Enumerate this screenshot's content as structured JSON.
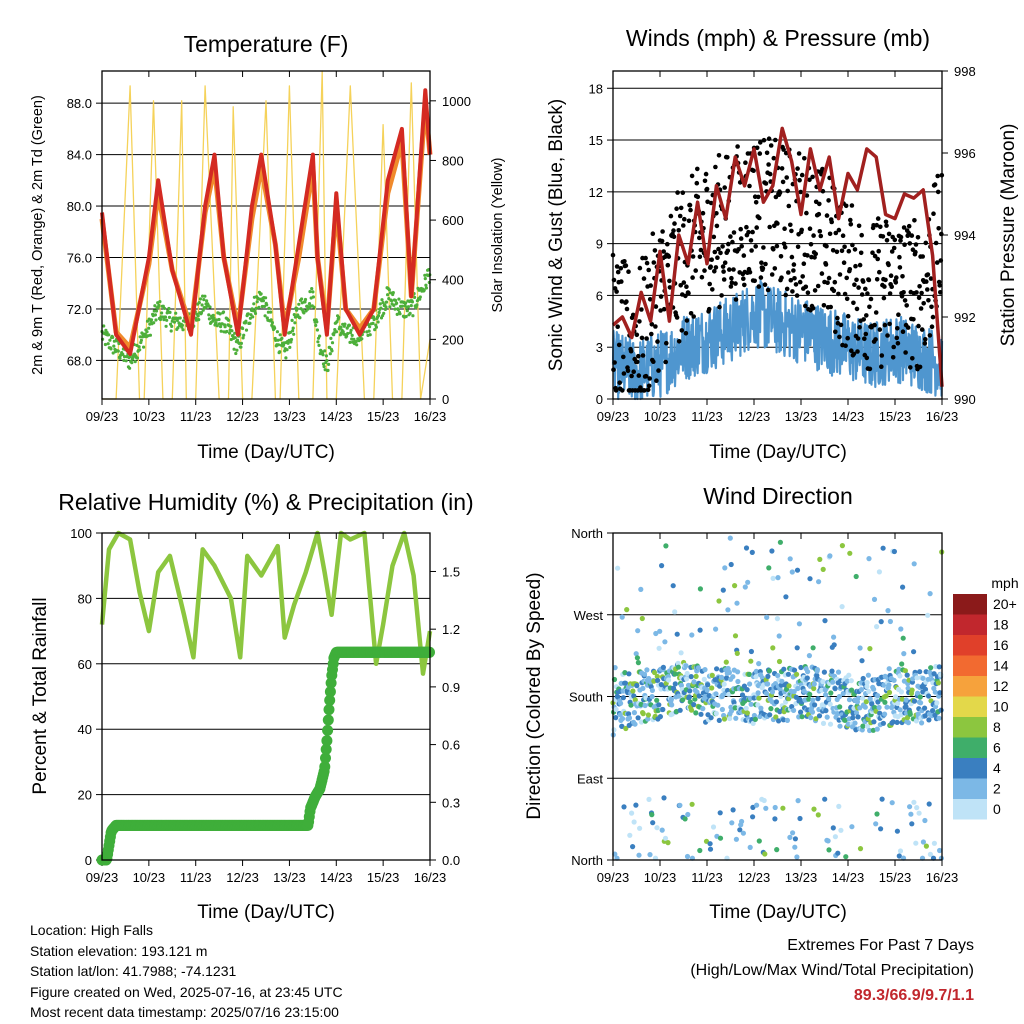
{
  "x_ticks": [
    "09/23",
    "10/23",
    "11/23",
    "12/23",
    "13/23",
    "14/23",
    "15/23",
    "16/23"
  ],
  "info": {
    "location": "Location: High Falls",
    "elevation": "Station elevation: 193.121 m",
    "latlon": "Station lat/lon: 41.7988; -74.1231",
    "created": "Figure created on Wed, 2025-07-16, at 23:45 UTC",
    "recent": "Most recent data timestamp: 2025/07/16 23:15:00"
  },
  "extremes": {
    "line1": "Extremes For Past 7 Days",
    "line2": "(High/Low/Max Wind/Total Precipitation)",
    "values": "89.3/66.9/9.7/1.1"
  },
  "chart_data": [
    {
      "type": "line",
      "title": "Temperature (F)",
      "xlabel": "Time (Day/UTC)",
      "ylabel": "2m & 9m T (Red, Orange) & 2m Td (Green)",
      "ylabel_right": "Solar Insolation (Yellow)",
      "ylim": [
        65,
        90.5
      ],
      "ylim_right": [
        0,
        1100
      ],
      "yticks": [
        "68.0",
        "72.0",
        "76.0",
        "80.0",
        "84.0",
        "88.0"
      ],
      "yticks_right": [
        "0",
        "200",
        "400",
        "600",
        "800",
        "1000"
      ],
      "x": [
        9.0,
        9.3,
        9.6,
        10.0,
        10.2,
        10.5,
        10.9,
        11.2,
        11.4,
        11.6,
        11.9,
        12.2,
        12.4,
        12.7,
        12.9,
        13.2,
        13.5,
        13.6,
        13.8,
        14.0,
        14.2,
        14.5,
        14.8,
        15.1,
        15.4,
        15.6,
        15.9,
        16.0
      ],
      "series": [
        {
          "name": "2m T",
          "color": "#d42a22",
          "values": [
            79.5,
            70,
            68.5,
            76,
            82,
            75,
            70,
            80,
            84,
            76,
            70,
            80,
            84,
            77,
            70,
            77,
            84,
            76,
            70,
            81,
            72,
            70,
            72,
            82,
            86,
            73,
            89,
            84
          ]
        },
        {
          "name": "9m T",
          "color": "#f08a2c",
          "values": [
            79,
            70.2,
            69,
            75.5,
            81,
            75,
            70.5,
            79.5,
            83,
            76,
            70.5,
            79,
            83,
            77,
            70.5,
            76,
            83,
            76,
            70.5,
            80,
            72,
            70.5,
            72,
            81,
            85,
            73,
            88,
            84
          ]
        },
        {
          "name": "2m Td",
          "color": "#4daf3a",
          "values": [
            70,
            69,
            68,
            70.5,
            72,
            71,
            71,
            72.5,
            71,
            71,
            69,
            72,
            73,
            70,
            68.5,
            72,
            73,
            70,
            67.5,
            71,
            70,
            70,
            71,
            73,
            72,
            72,
            74,
            75
          ]
        },
        {
          "name": "Solar Insolation",
          "axis": "right",
          "color": "#f5d25a",
          "x": [
            9.0,
            9.3,
            9.6,
            9.8,
            9.9,
            10.1,
            10.3,
            10.5,
            10.7,
            10.8,
            11.0,
            11.2,
            11.5,
            11.7,
            11.8,
            12.0,
            12.2,
            12.5,
            12.7,
            12.8,
            13.0,
            13.2,
            13.5,
            13.7,
            13.8,
            14.0,
            14.3,
            14.6,
            14.8,
            15.0,
            15.2,
            15.4,
            15.6,
            15.8,
            16.0
          ],
          "values": [
            0,
            0,
            1050,
            0,
            0,
            1000,
            0,
            0,
            1000,
            0,
            0,
            1050,
            0,
            0,
            980,
            0,
            0,
            1000,
            0,
            0,
            1050,
            0,
            0,
            1100,
            0,
            0,
            1050,
            0,
            0,
            920,
            0,
            0,
            1060,
            0,
            200
          ]
        }
      ]
    },
    {
      "type": "scatter",
      "title": "Winds (mph) & Pressure (mb)",
      "xlabel": "Time (Day/UTC)",
      "ylabel": "Sonic Wind & Gust (Blue, Black)",
      "ylabel_right": "Station Pressure (Maroon)",
      "ylim": [
        0,
        19
      ],
      "ylim_right": [
        990,
        998
      ],
      "yticks": [
        "0",
        "3",
        "6",
        "9",
        "12",
        "15",
        "18"
      ],
      "yticks_right": [
        "990",
        "992",
        "994",
        "996",
        "998"
      ],
      "series": [
        {
          "name": "Wind",
          "color": "#4f96cf",
          "x": [
            9.0,
            9.5,
            10.0,
            10.5,
            11.0,
            11.5,
            12.0,
            12.5,
            13.0,
            13.5,
            14.0,
            14.5,
            15.0,
            15.5,
            16.0
          ],
          "values": [
            2,
            1.5,
            2,
            3,
            3.5,
            4,
            5,
            4.5,
            4,
            3.5,
            3,
            2.5,
            3,
            2.5,
            2
          ]
        },
        {
          "name": "Gust",
          "color": "#000000",
          "x": [
            9.0,
            9.5,
            10.0,
            10.5,
            11.0,
            11.5,
            12.0,
            12.5,
            13.0,
            13.5,
            14.0,
            14.5,
            15.0,
            15.5,
            16.0
          ],
          "values": [
            4,
            3,
            6,
            8,
            9.5,
            10,
            11,
            10.5,
            10,
            9,
            7,
            6,
            6.5,
            6,
            9
          ]
        },
        {
          "name": "Pressure",
          "axis": "right",
          "color": "#a1201f",
          "x": [
            9.0,
            9.2,
            9.4,
            9.6,
            9.8,
            10.0,
            10.2,
            10.4,
            10.6,
            10.8,
            11.0,
            11.2,
            11.4,
            11.6,
            11.8,
            12.0,
            12.2,
            12.4,
            12.6,
            12.8,
            13.0,
            13.2,
            13.4,
            13.6,
            13.8,
            14.0,
            14.2,
            14.4,
            14.6,
            14.8,
            15.0,
            15.2,
            15.4,
            15.6,
            15.8,
            16.0
          ],
          "values": [
            991.8,
            992,
            991.5,
            992.6,
            991.9,
            993.6,
            991.9,
            994,
            993.3,
            994.8,
            993.3,
            995.2,
            994.4,
            995.9,
            995.2,
            996.1,
            994.8,
            995.2,
            996.6,
            995.8,
            994.5,
            996.1,
            995.1,
            995.9,
            994.4,
            995.5,
            995.1,
            996.1,
            995.9,
            994.5,
            994.4,
            995,
            994.9,
            995.1,
            993.5,
            990.3
          ]
        }
      ]
    },
    {
      "type": "line",
      "title": "Relative Humidity (%) & Precipitation (in)",
      "xlabel": "Time (Day/UTC)",
      "ylabel": "Percent & Total Rainfall",
      "ylim": [
        0,
        100
      ],
      "ylim_right": [
        0,
        1.7
      ],
      "yticks": [
        "0",
        "20",
        "40",
        "60",
        "80",
        "100"
      ],
      "yticks_right": [
        "0.0",
        "0.3",
        "0.6",
        "0.9",
        "1.2",
        "1.5"
      ],
      "series": [
        {
          "name": "Relative Humidity",
          "color": "#8cc63f",
          "x": [
            9.0,
            9.15,
            9.35,
            9.6,
            9.8,
            10.0,
            10.2,
            10.45,
            10.75,
            10.95,
            11.15,
            11.4,
            11.75,
            11.95,
            12.1,
            12.4,
            12.75,
            12.9,
            13.1,
            13.35,
            13.6,
            13.75,
            13.9,
            14.1,
            14.3,
            14.6,
            14.85,
            15.0,
            15.2,
            15.45,
            15.65,
            15.85,
            16.0
          ],
          "values": [
            72,
            95,
            100,
            98,
            82,
            70,
            88,
            93,
            75,
            62,
            95,
            90,
            80,
            62,
            93,
            87,
            96,
            68,
            78,
            88,
            100,
            88,
            75,
            100,
            98,
            100,
            60,
            72,
            90,
            100,
            87,
            57,
            70
          ]
        },
        {
          "name": "Total Precipitation",
          "axis": "right",
          "color": "#3fae3a",
          "x": [
            9.0,
            9.1,
            9.2,
            9.3,
            13.4,
            13.45,
            13.55,
            13.65,
            13.75,
            13.8,
            13.85,
            13.9,
            13.95,
            14.0,
            14.1,
            16.0
          ],
          "values": [
            0,
            0,
            0.15,
            0.18,
            0.18,
            0.27,
            0.33,
            0.37,
            0.47,
            0.62,
            0.8,
            0.95,
            1.05,
            1.08,
            1.08,
            1.08
          ]
        }
      ]
    },
    {
      "type": "scatter",
      "title": "Wind Direction",
      "xlabel": "Time (Day/UTC)",
      "ylabel": "Direction (Colored By Speed)",
      "ylim": [
        0,
        360
      ],
      "yticks": [
        "North",
        "East",
        "South",
        "West",
        "North"
      ],
      "legend_title": "mph",
      "legend_labels": [
        "20+",
        "18",
        "16",
        "14",
        "12",
        "10",
        "8",
        "6",
        "4",
        "2",
        "0"
      ],
      "legend_colors": [
        "#8b1a1a",
        "#c1272d",
        "#e0402a",
        "#f26a30",
        "#f6a23c",
        "#e3d84a",
        "#8cc63f",
        "#3fae6a",
        "#3a7fc0",
        "#7cb8e6",
        "#bfe3f7"
      ],
      "series": [
        {
          "name": "Direction band",
          "x": [
            9.0,
            9.5,
            10.0,
            10.5,
            11.0,
            11.5,
            12.0,
            12.5,
            13.0,
            13.5,
            14.0,
            14.5,
            15.0,
            15.5,
            16.0
          ],
          "values": [
            165,
            180,
            180,
            190,
            180,
            185,
            180,
            180,
            185,
            180,
            175,
            170,
            180,
            180,
            185
          ]
        }
      ]
    }
  ]
}
